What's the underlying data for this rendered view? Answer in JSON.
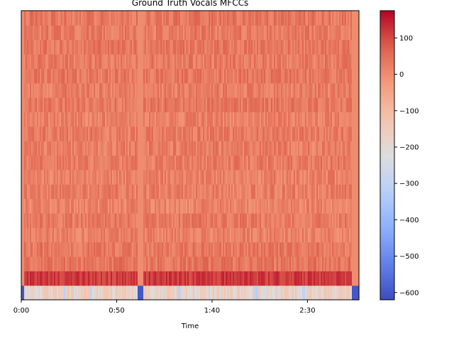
{
  "chart_data": {
    "type": "heatmap",
    "title": "Ground Truth Vocals MFCCs",
    "xlabel": "Time",
    "ylabel": "",
    "colormap": "coolwarm",
    "x_unit": "seconds",
    "x_range": [
      0,
      177
    ],
    "x_ticks": [
      {
        "value": 0,
        "label": "0:00"
      },
      {
        "value": 50,
        "label": "0:50"
      },
      {
        "value": 100,
        "label": "1:40"
      },
      {
        "value": 150,
        "label": "2:30"
      }
    ],
    "n_coefficients": 20,
    "y_ticks_shown": false,
    "colorbar": {
      "range": [
        -620,
        175
      ],
      "ticks": [
        {
          "value": 100,
          "label": "100"
        },
        {
          "value": 0,
          "label": "0"
        },
        {
          "value": -100,
          "label": "−100"
        },
        {
          "value": -200,
          "label": "−200"
        },
        {
          "value": -300,
          "label": "−300"
        },
        {
          "value": -400,
          "label": "−400"
        },
        {
          "value": -500,
          "label": "−500"
        },
        {
          "value": -600,
          "label": "−600"
        }
      ]
    },
    "coefficient_typical_values": [
      -180,
      110,
      40,
      35,
      20,
      30,
      15,
      25,
      20,
      30,
      25,
      30,
      20,
      35,
      25,
      35,
      30,
      35,
      30,
      35
    ],
    "silent_segments_s": [
      [
        0,
        1.5
      ],
      [
        61,
        64
      ],
      [
        173,
        177
      ]
    ],
    "low_energy_dips_s": [
      [
        22,
        23
      ],
      [
        36,
        37
      ],
      [
        82,
        83
      ],
      [
        122,
        124
      ],
      [
        147,
        149
      ]
    ]
  }
}
